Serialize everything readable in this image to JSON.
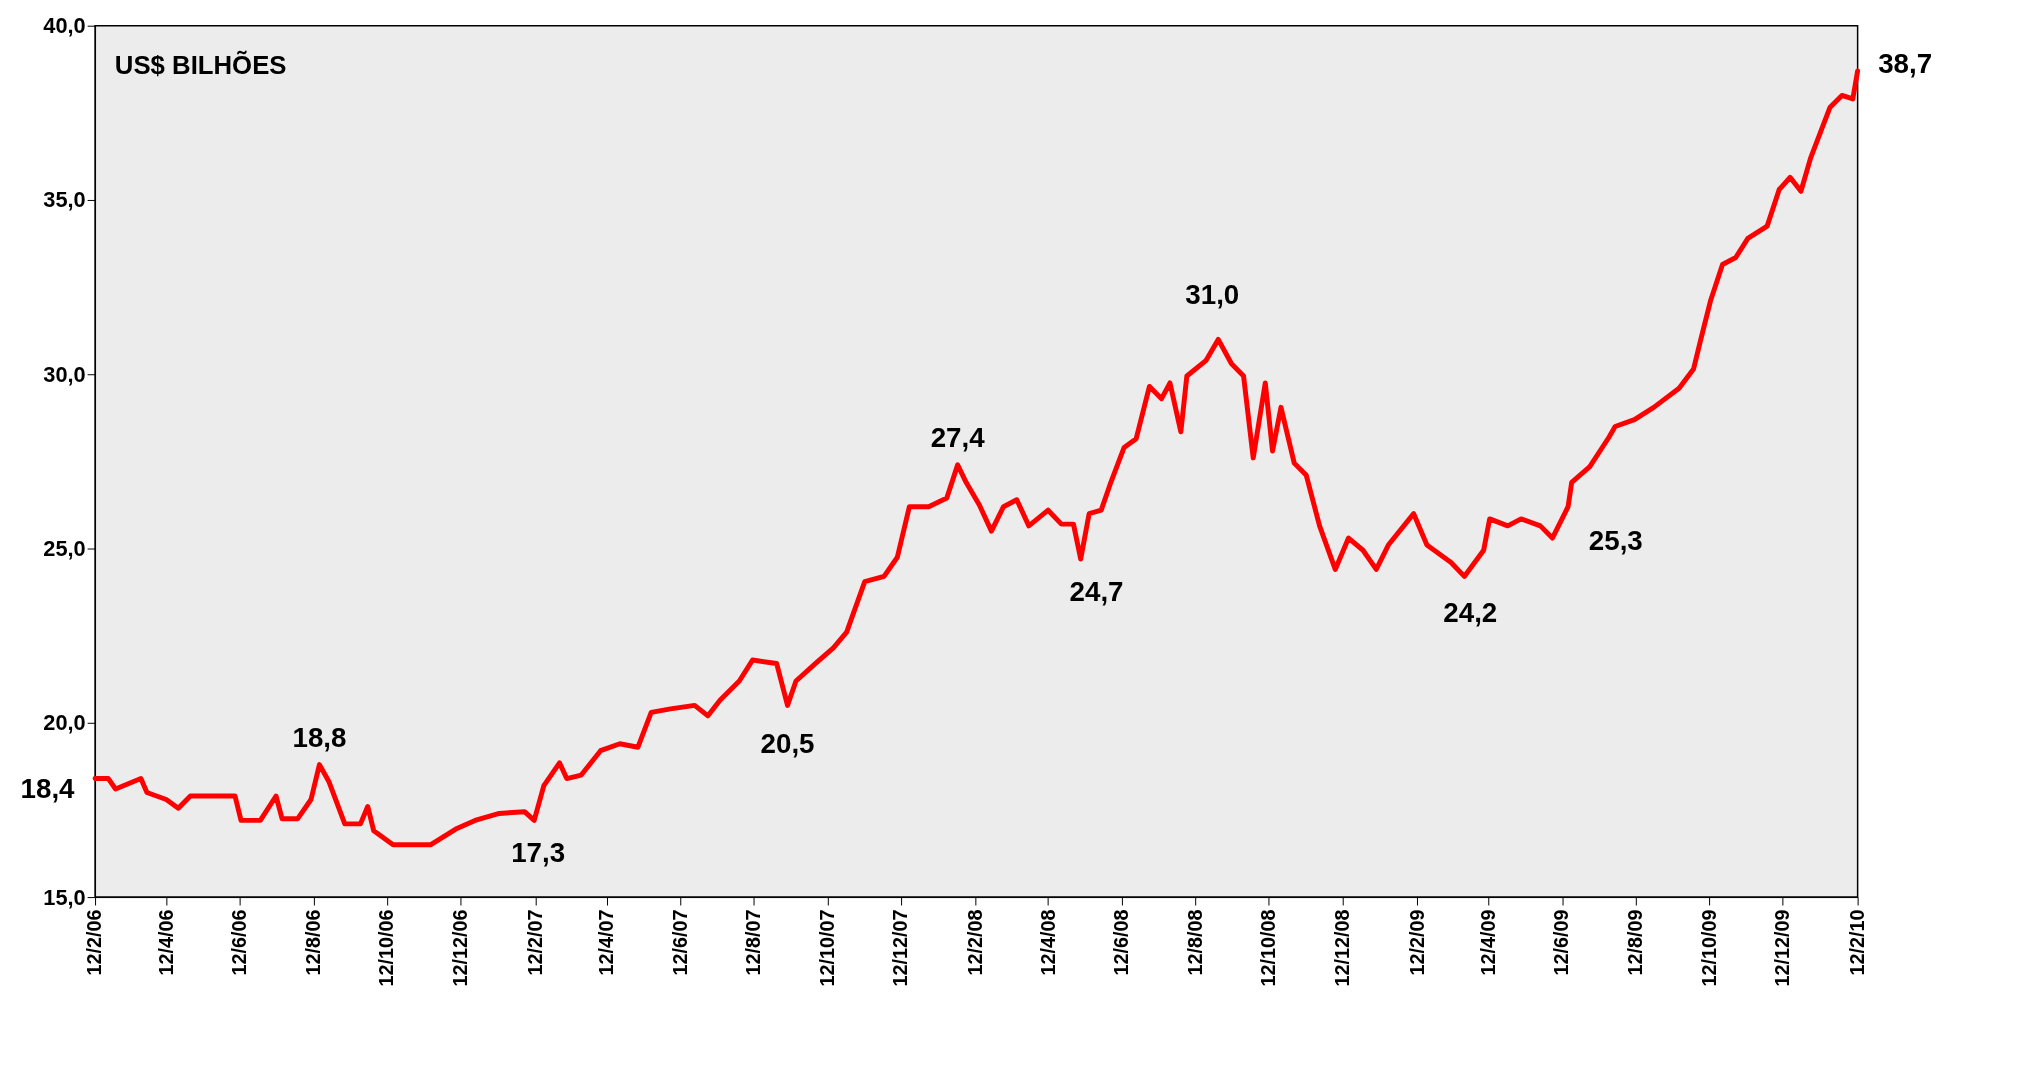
{
  "chart_data": {
    "type": "line",
    "ylabel": "US$ BILHÕES",
    "x": [
      "2006-02-12",
      "2006-02-23",
      "2006-03-01",
      "2006-03-22",
      "2006-03-27",
      "2006-04-12",
      "2006-04-22",
      "2006-05-02",
      "2006-05-12",
      "2006-06-08",
      "2006-06-13",
      "2006-06-29",
      "2006-07-12",
      "2006-07-17",
      "2006-07-30",
      "2006-08-10",
      "2006-08-17",
      "2006-08-25",
      "2006-09-07",
      "2006-09-20",
      "2006-09-26",
      "2006-10-01",
      "2006-10-17",
      "2006-11-17",
      "2006-12-08",
      "2006-12-24",
      "2007-01-13",
      "2007-02-03",
      "2007-02-11",
      "2007-02-19",
      "2007-03-04",
      "2007-03-10",
      "2007-03-22",
      "2007-04-07",
      "2007-04-23",
      "2007-05-08",
      "2007-05-19",
      "2007-06-04",
      "2007-06-24",
      "2007-07-05",
      "2007-07-15",
      "2007-07-31",
      "2007-08-11",
      "2007-08-31",
      "2007-09-09",
      "2007-09-16",
      "2007-10-02",
      "2007-10-17",
      "2007-10-28",
      "2007-11-12",
      "2007-11-28",
      "2007-12-09",
      "2007-12-19",
      "2008-01-04",
      "2008-01-19",
      "2008-01-28",
      "2008-02-04",
      "2008-02-15",
      "2008-02-25",
      "2008-03-06",
      "2008-03-17",
      "2008-03-27",
      "2008-04-12",
      "2008-04-23",
      "2008-05-03",
      "2008-05-09",
      "2008-05-16",
      "2008-05-26",
      "2008-06-03",
      "2008-06-14",
      "2008-06-24",
      "2008-07-05",
      "2008-07-15",
      "2008-07-22",
      "2008-07-31",
      "2008-08-05",
      "2008-08-21",
      "2008-08-31",
      "2008-09-11",
      "2008-09-21",
      "2008-09-29",
      "2008-10-09",
      "2008-10-15",
      "2008-10-22",
      "2008-11-02",
      "2008-11-12",
      "2008-11-23",
      "2008-12-06",
      "2008-12-17",
      "2008-12-29",
      "2009-01-09",
      "2009-01-19",
      "2009-02-09",
      "2009-02-20",
      "2009-03-12",
      "2009-03-23",
      "2009-04-08",
      "2009-04-13",
      "2009-04-28",
      "2009-05-09",
      "2009-05-25",
      "2009-06-04",
      "2009-06-17",
      "2009-06-20",
      "2009-07-05",
      "2009-07-21",
      "2009-07-26",
      "2009-08-11",
      "2009-08-27",
      "2009-09-17",
      "2009-09-29",
      "2009-10-05",
      "2009-10-13",
      "2009-10-23",
      "2009-11-03",
      "2009-11-13",
      "2009-11-29",
      "2009-12-09",
      "2009-12-18",
      "2009-12-27",
      "2010-01-04",
      "2010-01-20",
      "2010-01-30",
      "2010-02-08",
      "2010-02-12"
    ],
    "series": [
      {
        "color": "#ff0000",
        "values": [
          18.4,
          18.4,
          18.1,
          18.4,
          18.0,
          17.8,
          17.55,
          17.9,
          17.9,
          17.9,
          17.2,
          17.2,
          17.9,
          17.25,
          17.25,
          17.8,
          18.8,
          18.3,
          17.1,
          17.1,
          17.6,
          16.9,
          16.5,
          16.5,
          16.95,
          17.2,
          17.4,
          17.45,
          17.2,
          18.2,
          18.85,
          18.4,
          18.5,
          19.2,
          19.4,
          19.3,
          20.3,
          20.4,
          20.5,
          20.2,
          20.65,
          21.2,
          21.8,
          21.7,
          20.5,
          21.2,
          21.7,
          22.15,
          22.6,
          24.05,
          24.2,
          24.75,
          26.2,
          26.2,
          26.45,
          27.4,
          26.9,
          26.25,
          25.5,
          26.2,
          26.4,
          25.65,
          26.1,
          25.7,
          25.7,
          24.7,
          26.0,
          26.1,
          26.9,
          27.9,
          28.15,
          29.65,
          29.3,
          29.75,
          28.35,
          29.95,
          30.4,
          31.0,
          30.3,
          29.95,
          27.6,
          29.75,
          27.8,
          29.05,
          27.45,
          27.1,
          25.65,
          24.4,
          25.3,
          24.95,
          24.4,
          25.1,
          26.0,
          25.1,
          24.6,
          24.2,
          24.95,
          25.85,
          25.65,
          25.85,
          25.65,
          25.3,
          26.2,
          26.9,
          27.35,
          28.2,
          28.5,
          28.7,
          29.05,
          29.6,
          30.15,
          31.0,
          32.1,
          33.15,
          33.35,
          33.9,
          34.25,
          35.3,
          35.65,
          35.25,
          36.2,
          37.65,
          38.0,
          37.9,
          38.7
        ]
      }
    ],
    "xlim": [
      "2006-02-12",
      "2010-02-12"
    ],
    "xticks": [
      {
        "value": "2006-02-12",
        "label": "12/2/06"
      },
      {
        "value": "2006-04-12",
        "label": "12/4/06"
      },
      {
        "value": "2006-06-12",
        "label": "12/6/06"
      },
      {
        "value": "2006-08-12",
        "label": "12/8/06"
      },
      {
        "value": "2006-10-12",
        "label": "12/10/06"
      },
      {
        "value": "2006-12-12",
        "label": "12/12/06"
      },
      {
        "value": "2007-02-12",
        "label": "12/2/07"
      },
      {
        "value": "2007-04-12",
        "label": "12/4/07"
      },
      {
        "value": "2007-06-12",
        "label": "12/6/07"
      },
      {
        "value": "2007-08-12",
        "label": "12/8/07"
      },
      {
        "value": "2007-10-12",
        "label": "12/10/07"
      },
      {
        "value": "2007-12-12",
        "label": "12/12/07"
      },
      {
        "value": "2008-02-12",
        "label": "12/2/08"
      },
      {
        "value": "2008-04-12",
        "label": "12/4/08"
      },
      {
        "value": "2008-06-12",
        "label": "12/6/08"
      },
      {
        "value": "2008-08-12",
        "label": "12/8/08"
      },
      {
        "value": "2008-10-12",
        "label": "12/10/08"
      },
      {
        "value": "2008-12-12",
        "label": "12/12/08"
      },
      {
        "value": "2009-02-12",
        "label": "12/2/09"
      },
      {
        "value": "2009-04-12",
        "label": "12/4/09"
      },
      {
        "value": "2009-06-12",
        "label": "12/6/09"
      },
      {
        "value": "2009-08-12",
        "label": "12/8/09"
      },
      {
        "value": "2009-10-12",
        "label": "12/10/09"
      },
      {
        "value": "2009-12-12",
        "label": "12/12/09"
      },
      {
        "value": "2010-02-12",
        "label": "12/2/10"
      }
    ],
    "ylim": [
      15,
      40
    ],
    "yticks": [
      {
        "value": 15,
        "label": "15,0"
      },
      {
        "value": 20,
        "label": "20,0"
      },
      {
        "value": 25,
        "label": "25,0"
      },
      {
        "value": 30,
        "label": "30,0"
      },
      {
        "value": 35,
        "label": "35,0"
      },
      {
        "value": 40,
        "label": "40,0"
      }
    ],
    "grid": false,
    "marker": "none",
    "line_style": "solid",
    "annotations": [
      {
        "text": "18,4",
        "x": "2006-02-12",
        "y": 18.4
      },
      {
        "text": "18,8",
        "x": "2006-08-17",
        "y": 18.8
      },
      {
        "text": "17,3",
        "x": "2007-02-11",
        "y": 17.2
      },
      {
        "text": "20,5",
        "x": "2007-09-09",
        "y": 20.5
      },
      {
        "text": "27,4",
        "x": "2008-01-28",
        "y": 27.4
      },
      {
        "text": "24,7",
        "x": "2008-05-09",
        "y": 24.7
      },
      {
        "text": "31,0",
        "x": "2008-08-31",
        "y": 31.0
      },
      {
        "text": "24,2",
        "x": "2009-03-23",
        "y": 24.2
      },
      {
        "text": "25,3",
        "x": "2009-06-04",
        "y": 25.3
      },
      {
        "text": "38,7",
        "x": "2010-02-12",
        "y": 38.7
      }
    ]
  }
}
